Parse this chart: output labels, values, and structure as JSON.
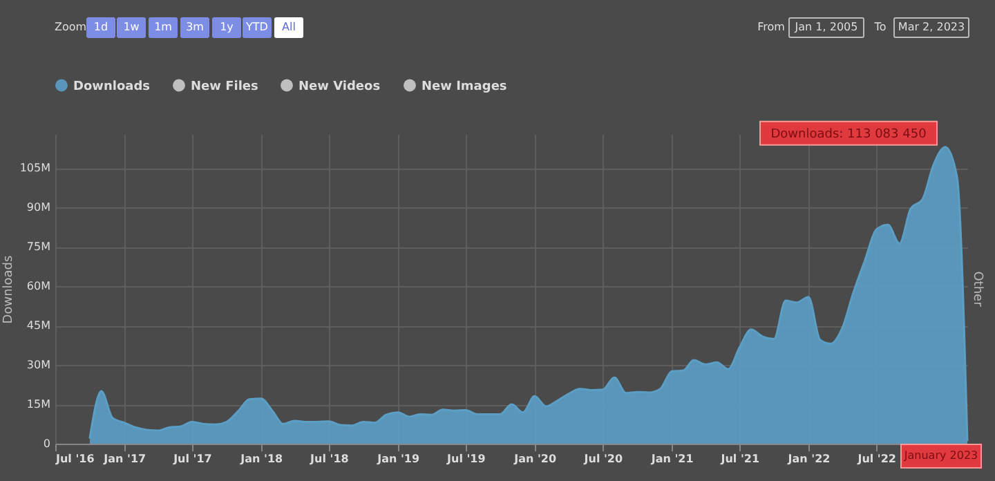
{
  "chart_data": {
    "type": "area",
    "x": [
      "2016-10",
      "2016-11",
      "2016-12",
      "2017-01",
      "2017-02",
      "2017-03",
      "2017-04",
      "2017-05",
      "2017-06",
      "2017-07",
      "2017-08",
      "2017-09",
      "2017-10",
      "2017-11",
      "2017-12",
      "2018-01",
      "2018-02",
      "2018-03",
      "2018-04",
      "2018-05",
      "2018-06",
      "2018-07",
      "2018-08",
      "2018-09",
      "2018-10",
      "2018-11",
      "2018-12",
      "2019-01",
      "2019-02",
      "2019-03",
      "2019-04",
      "2019-05",
      "2019-06",
      "2019-07",
      "2019-08",
      "2019-09",
      "2019-10",
      "2019-11",
      "2019-12",
      "2020-01",
      "2020-02",
      "2020-03",
      "2020-04",
      "2020-05",
      "2020-06",
      "2020-07",
      "2020-08",
      "2020-09",
      "2020-10",
      "2020-11",
      "2020-12",
      "2021-01",
      "2021-02",
      "2021-03",
      "2021-04",
      "2021-05",
      "2021-06",
      "2021-07",
      "2021-08",
      "2021-09",
      "2021-10",
      "2021-11",
      "2021-12",
      "2022-01",
      "2022-02",
      "2022-03",
      "2022-04",
      "2022-05",
      "2022-06",
      "2022-07",
      "2022-08",
      "2022-09",
      "2022-10",
      "2022-11",
      "2022-12",
      "2023-01",
      "2023-02",
      "2023-03"
    ],
    "series": [
      {
        "name": "Downloads",
        "color": "#5b9fc6",
        "values": [
          2,
          20,
          9.8,
          8,
          6.2,
          5.3,
          5,
          6.2,
          6.6,
          8.3,
          7.5,
          7.3,
          8.3,
          12.4,
          16.9,
          17.2,
          12.4,
          7.5,
          8.7,
          8.3,
          8.3,
          8.5,
          7.1,
          6.9,
          8.3,
          8,
          11,
          11.9,
          10.3,
          11.2,
          11,
          13,
          12.6,
          12.8,
          11.2,
          11.2,
          11.2,
          15,
          11.9,
          18.1,
          14.2,
          16.3,
          19,
          20.9,
          20.4,
          20.6,
          25.2,
          19.3,
          19.7,
          19.5,
          20.8,
          27.5,
          27.9,
          31.9,
          30.2,
          31,
          28.4,
          36.7,
          43.5,
          40.8,
          39.9,
          54.5,
          53.8,
          55.9,
          39.6,
          38.1,
          44,
          57.7,
          70,
          81.6,
          83.4,
          76.3,
          89.6,
          93.1,
          106.4,
          113.08345,
          102,
          1
        ]
      },
      {
        "name": "New Files",
        "color": "#cccccc",
        "values": [
          null,
          null,
          null,
          null,
          null,
          null,
          null,
          null,
          null,
          null,
          null,
          null,
          null,
          null,
          null,
          null,
          null,
          null,
          null,
          null,
          null,
          null,
          null,
          null,
          null,
          null,
          null,
          null,
          null,
          null,
          null,
          null,
          null,
          null,
          null,
          null,
          null,
          null,
          null,
          null,
          null,
          null,
          null,
          null,
          null,
          null,
          null,
          null,
          null,
          null,
          null,
          null,
          null,
          null,
          null,
          null,
          null,
          null,
          null,
          null,
          null,
          null,
          null,
          null,
          null,
          null,
          null,
          null,
          null,
          null,
          null,
          null,
          null,
          null,
          null,
          null,
          null,
          null
        ]
      },
      {
        "name": "New Videos",
        "color": "#cccccc",
        "values": [
          null,
          null,
          null,
          null,
          null,
          null,
          null,
          null,
          null,
          null,
          null,
          null,
          null,
          null,
          null,
          null,
          null,
          null,
          null,
          null,
          null,
          null,
          null,
          null,
          null,
          null,
          null,
          null,
          null,
          null,
          null,
          null,
          null,
          null,
          null,
          null,
          null,
          null,
          null,
          null,
          null,
          null,
          null,
          null,
          null,
          null,
          null,
          null,
          null,
          null,
          null,
          null,
          null,
          null,
          null,
          null,
          null,
          null,
          null,
          null,
          null,
          null,
          null,
          null,
          null,
          null,
          null,
          null,
          null,
          null,
          null,
          null,
          null,
          null,
          null,
          null,
          null,
          null
        ]
      },
      {
        "name": "New Images",
        "color": "#cccccc",
        "values": [
          null,
          null,
          null,
          null,
          null,
          null,
          null,
          null,
          null,
          null,
          null,
          null,
          null,
          null,
          null,
          null,
          null,
          null,
          null,
          null,
          null,
          null,
          null,
          null,
          null,
          null,
          null,
          null,
          null,
          null,
          null,
          null,
          null,
          null,
          null,
          null,
          null,
          null,
          null,
          null,
          null,
          null,
          null,
          null,
          null,
          null,
          null,
          null,
          null,
          null,
          null,
          null,
          null,
          null,
          null,
          null,
          null,
          null,
          null,
          null,
          null,
          null,
          null,
          null,
          null,
          null,
          null,
          null,
          null,
          null,
          null,
          null,
          null,
          null,
          null,
          null,
          null,
          null
        ]
      }
    ],
    "ylabel": "Downloads",
    "y2label": "Other",
    "xlim": [
      "2016-07-01",
      "2023-03-01"
    ],
    "xticks": [
      {
        "value": "2016-07-01",
        "label": "Jul '16"
      },
      {
        "value": "2017-01-01",
        "label": "Jan '17"
      },
      {
        "value": "2017-07-01",
        "label": "Jul '17"
      },
      {
        "value": "2018-01-01",
        "label": "Jan '18"
      },
      {
        "value": "2018-07-01",
        "label": "Jul '18"
      },
      {
        "value": "2019-01-01",
        "label": "Jan '19"
      },
      {
        "value": "2019-07-01",
        "label": "Jul '19"
      },
      {
        "value": "2020-01-01",
        "label": "Jan '20"
      },
      {
        "value": "2020-07-01",
        "label": "Jul '20"
      },
      {
        "value": "2021-01-01",
        "label": "Jan '21"
      },
      {
        "value": "2021-07-01",
        "label": "Jul '21"
      },
      {
        "value": "2022-01-01",
        "label": "Jan '22"
      },
      {
        "value": "2022-07-01",
        "label": "Jul '22"
      }
    ],
    "ylim": [
      0,
      118
    ],
    "yticks": [
      {
        "value": 0,
        "label": "0"
      },
      {
        "value": 15,
        "label": "15M"
      },
      {
        "value": 30,
        "label": "30M"
      },
      {
        "value": 45,
        "label": "45M"
      },
      {
        "value": 60,
        "label": "60M"
      },
      {
        "value": 75,
        "label": "75M"
      },
      {
        "value": 90,
        "label": "90M"
      },
      {
        "value": 105,
        "label": "105M"
      }
    ],
    "grid": true,
    "legend": "top",
    "annotations": [
      {
        "text": "Downloads: 113 083 450",
        "x": "2023-01",
        "y": 113.08345
      },
      "January 2023",
      "Zoom",
      "1d",
      "1w",
      "1m",
      "3m",
      "1y",
      "YTD",
      "All",
      "From",
      "Jan 1, 2005",
      "To",
      "Mar 2, 2023"
    ]
  }
}
